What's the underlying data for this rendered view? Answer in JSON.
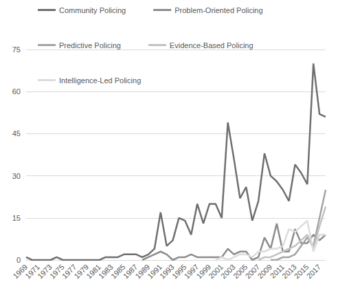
{
  "chart_data": {
    "type": "line",
    "categories": [
      "1969",
      null,
      "1971",
      null,
      "1973",
      null,
      "1975",
      null,
      "1977",
      null,
      "1979",
      null,
      "1981",
      null,
      "1983",
      null,
      "1985",
      null,
      "1987",
      null,
      "1989",
      null,
      "1991",
      null,
      "1993",
      null,
      "1995",
      null,
      "1997",
      null,
      "1999",
      null,
      "2001",
      null,
      "2003",
      null,
      "2005",
      null,
      "2007",
      null,
      "2009",
      null,
      "2011",
      null,
      "2013",
      null,
      "2015",
      null,
      "2017",
      null
    ],
    "series": [
      {
        "name": "Community Policing",
        "color": "#6f6f6f",
        "values": [
          1,
          0,
          0,
          0,
          0,
          1,
          0,
          0,
          0,
          0,
          0,
          0,
          0,
          1,
          1,
          1,
          2,
          2,
          2,
          1,
          2,
          4,
          17,
          5,
          7,
          15,
          14,
          9,
          20,
          13,
          20,
          20,
          15,
          49,
          36,
          22,
          26,
          14,
          21,
          38,
          30,
          28,
          25,
          21,
          34,
          31,
          27,
          70,
          52,
          51
        ]
      },
      {
        "name": "Problem-Oriented Policing",
        "color": "#8c8c8c",
        "values": [
          null,
          null,
          null,
          null,
          null,
          null,
          null,
          null,
          null,
          null,
          null,
          null,
          null,
          null,
          null,
          null,
          null,
          null,
          null,
          0,
          1,
          2,
          3,
          2,
          0,
          1,
          1,
          2,
          1,
          1,
          1,
          1,
          1,
          4,
          2,
          3,
          3,
          0,
          1,
          8,
          4,
          13,
          3,
          3,
          11,
          6,
          6,
          9,
          7,
          9
        ]
      },
      {
        "name": "Predictive Policing",
        "color": "#a3a3a3",
        "values": [
          null,
          null,
          null,
          null,
          null,
          null,
          null,
          null,
          null,
          null,
          null,
          null,
          null,
          null,
          null,
          null,
          null,
          null,
          null,
          null,
          null,
          null,
          null,
          null,
          null,
          null,
          null,
          null,
          null,
          null,
          null,
          null,
          null,
          null,
          null,
          null,
          null,
          null,
          null,
          null,
          0,
          0,
          1,
          1,
          2,
          5,
          8,
          5,
          15,
          25
        ]
      },
      {
        "name": "Evidence-Based Policing",
        "color": "#c2c2c2",
        "values": [
          null,
          null,
          null,
          null,
          null,
          null,
          null,
          null,
          null,
          null,
          null,
          null,
          null,
          null,
          null,
          null,
          null,
          null,
          null,
          null,
          null,
          null,
          null,
          null,
          null,
          null,
          null,
          null,
          null,
          null,
          null,
          null,
          null,
          null,
          null,
          null,
          null,
          null,
          0,
          1,
          1,
          2,
          3,
          4,
          5,
          7,
          9,
          4,
          12,
          19
        ]
      },
      {
        "name": "Intelligence-Led Policing",
        "color": "#dcdcdc",
        "values": [
          null,
          null,
          null,
          null,
          null,
          null,
          null,
          null,
          null,
          null,
          null,
          null,
          null,
          null,
          null,
          null,
          null,
          null,
          null,
          null,
          null,
          null,
          null,
          null,
          null,
          null,
          null,
          null,
          null,
          null,
          null,
          0,
          1,
          0,
          1,
          2,
          2,
          1,
          3,
          3,
          4,
          4,
          5,
          11,
          10,
          12,
          14,
          3,
          9,
          9
        ]
      }
    ],
    "ylim": [
      0,
      75
    ],
    "yticks": [
      0,
      15,
      30,
      45,
      60,
      75
    ],
    "grid": true,
    "legend": "top"
  }
}
